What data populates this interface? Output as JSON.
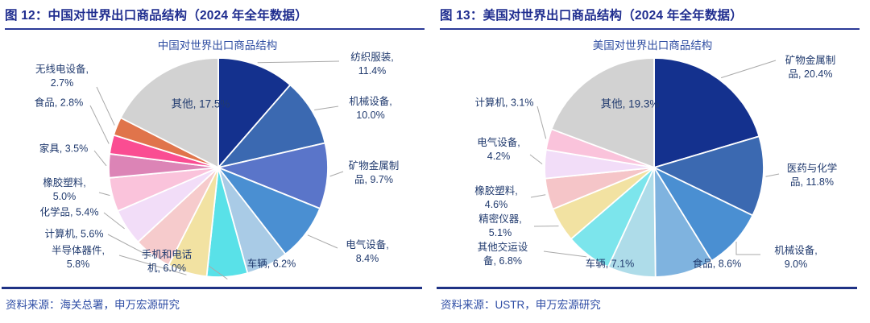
{
  "chart_data": [
    {
      "type": "pie",
      "title": "中国对世界出口商品结构",
      "unit": "%",
      "start_angle_deg": 0,
      "direction": "clockwise",
      "legend": "none",
      "slices": [
        {
          "label": "纺织服装",
          "value": 11.4,
          "display": "纺织服装,\n11.4%",
          "color": "#14318E"
        },
        {
          "label": "机械设备",
          "value": 10.0,
          "display": "机械设备,\n10.0%",
          "color": "#3B69B1"
        },
        {
          "label": "矿物金属制品",
          "value": 9.7,
          "display": "矿物金属制\n品, 9.7%",
          "color": "#5A75C9"
        },
        {
          "label": "电气设备",
          "value": 8.4,
          "display": "电气设备,\n8.4%",
          "color": "#4A8FD2"
        },
        {
          "label": "车辆",
          "value": 6.2,
          "display": "车辆, 6.2%",
          "color": "#A9CBE6"
        },
        {
          "label": "手机和电话机",
          "value": 6.0,
          "display": "手机和电话\n机, 6.0%",
          "color": "#59E1E8"
        },
        {
          "label": "半导体器件",
          "value": 5.8,
          "display": "半导体器件,\n5.8%",
          "color": "#F2E2A2"
        },
        {
          "label": "计算机",
          "value": 5.6,
          "display": "计算机, 5.6%",
          "color": "#F6CBCC"
        },
        {
          "label": "化学品",
          "value": 5.4,
          "display": "化学品, 5.4%",
          "color": "#F2DDF8"
        },
        {
          "label": "橡胶塑料",
          "value": 5.0,
          "display": "橡胶塑料,\n5.0%",
          "color": "#FAC3DB"
        },
        {
          "label": "家具",
          "value": 3.5,
          "display": "家具, 3.5%",
          "color": "#DC84B6"
        },
        {
          "label": "食品",
          "value": 2.8,
          "display": "食品, 2.8%",
          "color": "#FA4D92"
        },
        {
          "label": "无线电设备",
          "value": 2.7,
          "display": "无线电设备,\n2.7%",
          "color": "#E0744B"
        },
        {
          "label": "其他",
          "value": 17.5,
          "display": "其他, 17.5%",
          "color": "#D2D2D2"
        }
      ]
    },
    {
      "type": "pie",
      "title": "美国对世界出口商品结构",
      "unit": "%",
      "start_angle_deg": 0,
      "direction": "clockwise",
      "legend": "none",
      "slices": [
        {
          "label": "矿物金属制品",
          "value": 20.4,
          "display": "矿物金属制\n品, 20.4%",
          "color": "#14318E"
        },
        {
          "label": "医药与化学品",
          "value": 11.8,
          "display": "医药与化学\n品, 11.8%",
          "color": "#3B69B1"
        },
        {
          "label": "机械设备",
          "value": 9.0,
          "display": "机械设备,\n9.0%",
          "color": "#4A8FD2"
        },
        {
          "label": "食品",
          "value": 8.6,
          "display": "食品, 8.6%",
          "color": "#7FB3DF"
        },
        {
          "label": "车辆",
          "value": 7.1,
          "display": "车辆, 7.1%",
          "color": "#AEDCE9"
        },
        {
          "label": "其他交运设备",
          "value": 6.8,
          "display": "其他交运设\n备, 6.8%",
          "color": "#7CE5EC"
        },
        {
          "label": "精密仪器",
          "value": 5.1,
          "display": "精密仪器,\n5.1%",
          "color": "#F2E2A2"
        },
        {
          "label": "橡胶塑料",
          "value": 4.6,
          "display": "橡胶塑料,\n4.6%",
          "color": "#F5C5C8"
        },
        {
          "label": "电气设备",
          "value": 4.2,
          "display": "电气设备,\n4.2%",
          "color": "#F2DDF8"
        },
        {
          "label": "计算机",
          "value": 3.1,
          "display": "计算机, 3.1%",
          "color": "#FAC3DB"
        },
        {
          "label": "其他",
          "value": 19.3,
          "display": "其他, 19.3%",
          "color": "#D2D2D2"
        }
      ]
    }
  ],
  "panels": [
    {
      "figure_label": "图 12：中国对世界出口商品结构（2024 年全年数据）",
      "source": "资料来源：海关总署，申万宏源研究"
    },
    {
      "figure_label": "图 13：美国对世界出口商品结构（2024 年全年数据）",
      "source": "资料来源：USTR，申万宏源研究"
    }
  ],
  "colors": {
    "figure_title": "#1F2D8F",
    "header_rule": "#2B3A97",
    "chart_title": "#2F4EA2",
    "label_text": "#203A6E",
    "source_text": "#2E4DA5",
    "bottom_rule": "#1F3285",
    "leader_line": "#A9A9A9",
    "background": "#FFFFFF"
  }
}
